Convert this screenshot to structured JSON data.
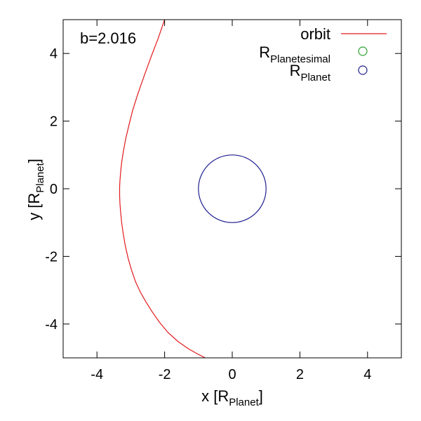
{
  "chart_data": {
    "type": "line",
    "xlabel": {
      "main": "x [R",
      "sub": "Planet",
      "close": "]"
    },
    "ylabel": {
      "main": "y [R",
      "sub": "Planet",
      "close": "]"
    },
    "xlim": [
      -5,
      5
    ],
    "ylim": [
      -5,
      5
    ],
    "xticks": [
      -4,
      -2,
      0,
      2,
      4
    ],
    "yticks": [
      -4,
      -2,
      0,
      2,
      4
    ],
    "annotation": "b=2.016",
    "legend_position": "top-right",
    "series": [
      {
        "name": "orbit",
        "kind": "line",
        "color": "#e31a1c",
        "x": [
          -2.0,
          -2.2,
          -2.4,
          -2.6,
          -2.8,
          -2.95,
          -3.05,
          -3.15,
          -3.22,
          -3.27,
          -3.3,
          -3.32,
          -3.33,
          -3.33,
          -3.32,
          -3.3,
          -3.27,
          -3.22,
          -3.16,
          -3.08,
          -2.98,
          -2.86,
          -2.72,
          -2.55,
          -2.36,
          -2.15,
          -1.9,
          -1.6,
          -1.3,
          -1.05,
          -0.8
        ],
        "y": [
          5.0,
          4.42,
          3.9,
          3.35,
          2.78,
          2.3,
          1.9,
          1.48,
          1.1,
          0.78,
          0.5,
          0.25,
          0.05,
          -0.2,
          -0.45,
          -0.7,
          -1.0,
          -1.35,
          -1.7,
          -2.05,
          -2.4,
          -2.75,
          -3.05,
          -3.35,
          -3.65,
          -3.95,
          -4.25,
          -4.52,
          -4.73,
          -4.87,
          -5.0
        ]
      },
      {
        "name": {
          "main": "R",
          "sub": "Planetesimal"
        },
        "kind": "circle",
        "color": "#2ca02c",
        "center": null,
        "radius": null
      },
      {
        "name": {
          "main": "R",
          "sub": "Planet"
        },
        "kind": "circle",
        "color": "#1f1f8f",
        "center": [
          0,
          0
        ],
        "radius": 1.0
      }
    ]
  }
}
